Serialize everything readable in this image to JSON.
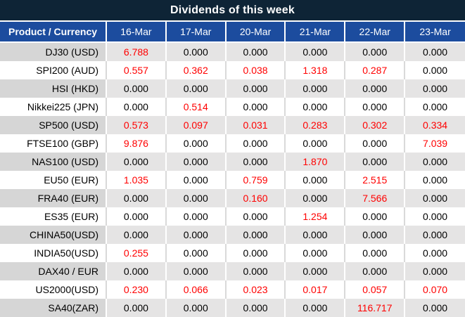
{
  "title": "Dividends of this week",
  "header": {
    "product_label": "Product / Currency",
    "dates": [
      "16-Mar",
      "17-Mar",
      "20-Mar",
      "21-Mar",
      "22-Mar",
      "23-Mar"
    ]
  },
  "rows": [
    {
      "product": "DJ30 (USD)",
      "values": [
        "6.788",
        "0.000",
        "0.000",
        "0.000",
        "0.000",
        "0.000"
      ],
      "red": [
        true,
        false,
        false,
        false,
        false,
        false
      ]
    },
    {
      "product": "SPI200 (AUD)",
      "values": [
        "0.557",
        "0.362",
        "0.038",
        "1.318",
        "0.287",
        "0.000"
      ],
      "red": [
        true,
        true,
        true,
        true,
        true,
        false
      ]
    },
    {
      "product": "HSI (HKD)",
      "values": [
        "0.000",
        "0.000",
        "0.000",
        "0.000",
        "0.000",
        "0.000"
      ],
      "red": [
        false,
        false,
        false,
        false,
        false,
        false
      ]
    },
    {
      "product": "Nikkei225 (JPN)",
      "values": [
        "0.000",
        "0.514",
        "0.000",
        "0.000",
        "0.000",
        "0.000"
      ],
      "red": [
        false,
        true,
        false,
        false,
        false,
        false
      ]
    },
    {
      "product": "SP500 (USD)",
      "values": [
        "0.573",
        "0.097",
        "0.031",
        "0.283",
        "0.302",
        "0.334"
      ],
      "red": [
        true,
        true,
        true,
        true,
        true,
        true
      ]
    },
    {
      "product": "FTSE100 (GBP)",
      "values": [
        "9.876",
        "0.000",
        "0.000",
        "0.000",
        "0.000",
        "7.039"
      ],
      "red": [
        true,
        false,
        false,
        false,
        false,
        true
      ]
    },
    {
      "product": "NAS100 (USD)",
      "values": [
        "0.000",
        "0.000",
        "0.000",
        "1.870",
        "0.000",
        "0.000"
      ],
      "red": [
        false,
        false,
        false,
        true,
        false,
        false
      ]
    },
    {
      "product": "EU50 (EUR)",
      "values": [
        "1.035",
        "0.000",
        "0.759",
        "0.000",
        "2.515",
        "0.000"
      ],
      "red": [
        true,
        false,
        true,
        false,
        true,
        false
      ]
    },
    {
      "product": "FRA40 (EUR)",
      "values": [
        "0.000",
        "0.000",
        "0.160",
        "0.000",
        "7.566",
        "0.000"
      ],
      "red": [
        false,
        false,
        true,
        false,
        true,
        false
      ]
    },
    {
      "product": "ES35 (EUR)",
      "values": [
        "0.000",
        "0.000",
        "0.000",
        "1.254",
        "0.000",
        "0.000"
      ],
      "red": [
        false,
        false,
        false,
        true,
        false,
        false
      ]
    },
    {
      "product": "CHINA50(USD)",
      "values": [
        "0.000",
        "0.000",
        "0.000",
        "0.000",
        "0.000",
        "0.000"
      ],
      "red": [
        false,
        false,
        false,
        false,
        false,
        false
      ]
    },
    {
      "product": "INDIA50(USD)",
      "values": [
        "0.255",
        "0.000",
        "0.000",
        "0.000",
        "0.000",
        "0.000"
      ],
      "red": [
        true,
        false,
        false,
        false,
        false,
        false
      ]
    },
    {
      "product": "DAX40 / EUR",
      "values": [
        "0.000",
        "0.000",
        "0.000",
        "0.000",
        "0.000",
        "0.000"
      ],
      "red": [
        false,
        false,
        false,
        false,
        false,
        false
      ]
    },
    {
      "product": "US2000(USD)",
      "values": [
        "0.230",
        "0.066",
        "0.023",
        "0.017",
        "0.057",
        "0.070"
      ],
      "red": [
        true,
        true,
        true,
        true,
        true,
        true
      ]
    },
    {
      "product": "SA40(ZAR)",
      "values": [
        "0.000",
        "0.000",
        "0.000",
        "0.000",
        "116.717",
        "0.000"
      ],
      "red": [
        false,
        false,
        false,
        false,
        true,
        false
      ]
    }
  ],
  "colors": {
    "title_bg": "#0E2436",
    "header_bg": "#1C4C9E",
    "header_text": "#FFFFFF",
    "row_stripe_product": "#D6D6D6",
    "row_stripe_value": "#E5E4E4",
    "row_white": "#FFFFFF",
    "separator_white": "#FFFFFF",
    "separator_gray": "#D9D9D9",
    "value_red": "#FF0000",
    "value_black": "#000000"
  },
  "chart_data": {
    "type": "table",
    "title": "Dividends of this week",
    "columns": [
      "Product / Currency",
      "16-Mar",
      "17-Mar",
      "20-Mar",
      "21-Mar",
      "22-Mar",
      "23-Mar"
    ],
    "rows": [
      [
        "DJ30 (USD)",
        6.788,
        0.0,
        0.0,
        0.0,
        0.0,
        0.0
      ],
      [
        "SPI200 (AUD)",
        0.557,
        0.362,
        0.038,
        1.318,
        0.287,
        0.0
      ],
      [
        "HSI (HKD)",
        0.0,
        0.0,
        0.0,
        0.0,
        0.0,
        0.0
      ],
      [
        "Nikkei225 (JPN)",
        0.0,
        0.514,
        0.0,
        0.0,
        0.0,
        0.0
      ],
      [
        "SP500 (USD)",
        0.573,
        0.097,
        0.031,
        0.283,
        0.302,
        0.334
      ],
      [
        "FTSE100 (GBP)",
        9.876,
        0.0,
        0.0,
        0.0,
        0.0,
        7.039
      ],
      [
        "NAS100 (USD)",
        0.0,
        0.0,
        0.0,
        1.87,
        0.0,
        0.0
      ],
      [
        "EU50 (EUR)",
        1.035,
        0.0,
        0.759,
        0.0,
        2.515,
        0.0
      ],
      [
        "FRA40 (EUR)",
        0.0,
        0.0,
        0.16,
        0.0,
        7.566,
        0.0
      ],
      [
        "ES35 (EUR)",
        0.0,
        0.0,
        0.0,
        1.254,
        0.0,
        0.0
      ],
      [
        "CHINA50(USD)",
        0.0,
        0.0,
        0.0,
        0.0,
        0.0,
        0.0
      ],
      [
        "INDIA50(USD)",
        0.255,
        0.0,
        0.0,
        0.0,
        0.0,
        0.0
      ],
      [
        "DAX40 / EUR",
        0.0,
        0.0,
        0.0,
        0.0,
        0.0,
        0.0
      ],
      [
        "US2000(USD)",
        0.23,
        0.066,
        0.023,
        0.017,
        0.057,
        0.07
      ],
      [
        "SA40(ZAR)",
        0.0,
        0.0,
        0.0,
        0.0,
        116.717,
        0.0
      ]
    ],
    "notes": "Red cells indicate non-zero dividend amounts highlighted in red; highlighted values listed in rows[].red mask of page data."
  }
}
